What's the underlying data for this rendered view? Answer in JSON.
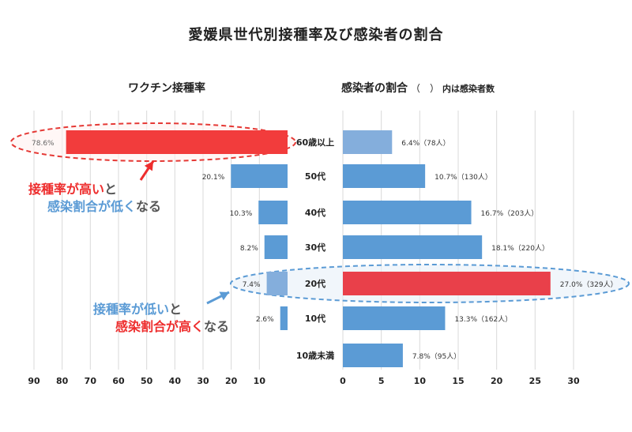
{
  "title": "愛媛県世代別接種率及び感染者の割合",
  "left_subtitle": "ワクチン接種率",
  "right_subtitle": {
    "main": "感染者の割合",
    "paren": "（　）",
    "note": "内は感染者数"
  },
  "callouts": {
    "top": {
      "line1": [
        {
          "text": "接種率が高い",
          "color": "red"
        },
        {
          "text": "と",
          "color": "gray"
        }
      ],
      "line2": [
        {
          "text": "感染割合が低く",
          "color": "blue"
        },
        {
          "text": "なる",
          "color": "gray"
        }
      ]
    },
    "bottom": {
      "line1": [
        {
          "text": "接種率が低い",
          "color": "blue"
        },
        {
          "text": "と",
          "color": "gray"
        }
      ],
      "line2": [
        {
          "text": "感染割合が高く",
          "color": "red"
        },
        {
          "text": "なる",
          "color": "gray"
        }
      ]
    }
  },
  "chart_data": {
    "type": "bar",
    "categories": [
      "60歳以上",
      "50代",
      "40代",
      "30代",
      "20代",
      "10代",
      "10歳未満"
    ],
    "left": {
      "title": "ワクチン接種率",
      "values": [
        78.6,
        20.1,
        10.3,
        8.2,
        7.4,
        2.6
      ],
      "labels": [
        "78.6%",
        "20.1%",
        "10.3%",
        "8.2%",
        "7.4%",
        "2.6%"
      ],
      "ticks": [
        90,
        80,
        70,
        60,
        50,
        40,
        30,
        20,
        10
      ],
      "xlim": [
        0,
        90
      ]
    },
    "right": {
      "title": "感染者の割合",
      "values": [
        6.4,
        10.7,
        16.7,
        18.1,
        27.0,
        13.3,
        7.8
      ],
      "counts": [
        78,
        130,
        203,
        220,
        329,
        162,
        95
      ],
      "labels": [
        "6.4%（78人）",
        "10.7%（130人）",
        "16.7%（203人）",
        "18.1%（220人）",
        "27.0%（329人）",
        "13.3%（162人）",
        "7.8%（95人）"
      ],
      "ticks": [
        0,
        5,
        10,
        15,
        20,
        25,
        30
      ],
      "xlim": [
        0,
        30
      ]
    },
    "highlights": {
      "left": "60歳以上",
      "right": "20代"
    },
    "colors": {
      "bar": "#5b9bd5",
      "bar_light": "#84aedc",
      "highlight": "#f23c3c",
      "highlight_right": "#e9404a",
      "ellipse_red": "#e53935",
      "ellipse_blue": "#5b9bd5",
      "grid": "#d9d9d9"
    }
  }
}
